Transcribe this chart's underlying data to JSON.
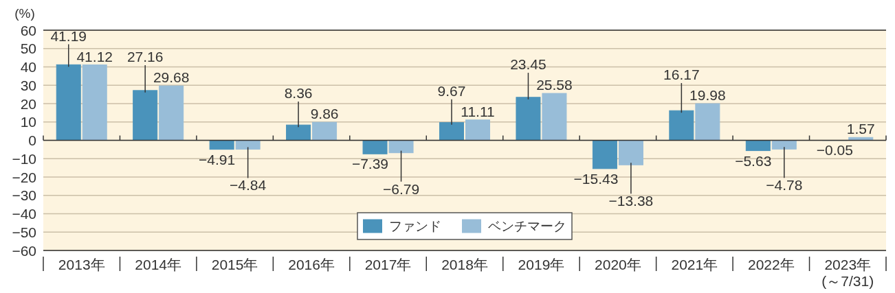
{
  "chart_data": {
    "type": "bar",
    "ylabel": "(%)",
    "categories": [
      "2013年",
      "2014年",
      "2015年",
      "2016年",
      "2017年",
      "2018年",
      "2019年",
      "2020年",
      "2021年",
      "2022年",
      "2023年\n(～7/31)"
    ],
    "series": [
      {
        "name": "ファンド",
        "color": "#4a93bb",
        "values": [
          41.19,
          27.16,
          -4.91,
          8.36,
          -7.39,
          9.67,
          23.45,
          -15.43,
          16.17,
          -5.63,
          -0.05
        ]
      },
      {
        "name": "ベンチマーク",
        "color": "#98bdd8",
        "values": [
          41.12,
          29.68,
          -4.84,
          9.86,
          -6.79,
          11.11,
          25.58,
          -13.38,
          19.98,
          -4.78,
          1.57
        ]
      }
    ],
    "ylim": [
      -60,
      60
    ],
    "yticks": [
      -60,
      -50,
      -40,
      -30,
      -20,
      -10,
      0,
      10,
      20,
      30,
      40,
      50,
      60
    ],
    "grid": "y",
    "legend": "bottom",
    "data_labels": true
  }
}
